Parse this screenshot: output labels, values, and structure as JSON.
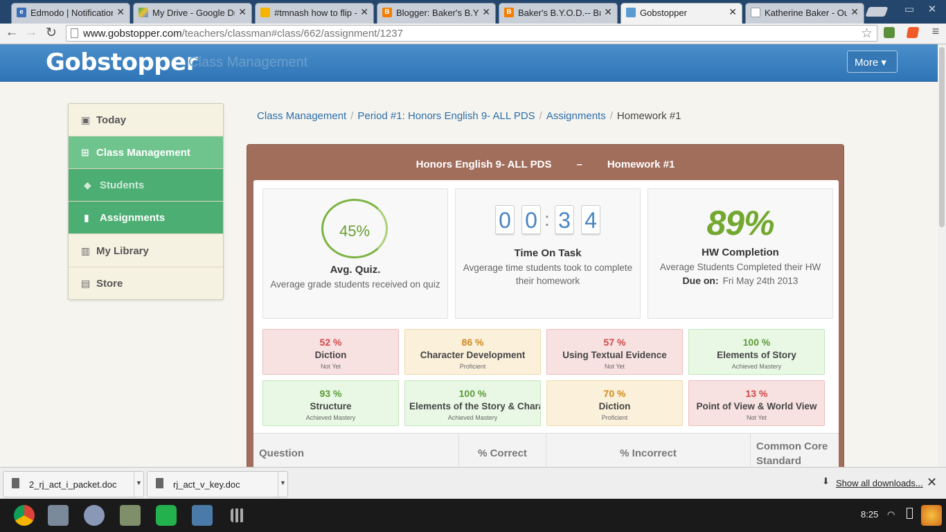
{
  "browser": {
    "tabs": [
      {
        "title": "Edmodo | Notifications",
        "icon": "edmodo-icon",
        "color": "#3a6fb8"
      },
      {
        "title": "My Drive - Google Drive",
        "icon": "google-drive-icon",
        "color": "#f1c232"
      },
      {
        "title": "#tmnash how to flip -",
        "icon": "document-icon",
        "color": "#f4b400"
      },
      {
        "title": "Blogger: Baker's B.Y.O.D.",
        "icon": "blogger-icon",
        "color": "#f57d00"
      },
      {
        "title": "Baker's B.Y.O.D.-- Bring",
        "icon": "blogger-icon",
        "color": "#f57d00"
      },
      {
        "title": "Gobstopper",
        "icon": "gobstopper-icon",
        "color": "#5a9bd4"
      },
      {
        "title": "Katherine Baker - Out",
        "icon": "page-icon",
        "color": "#dddddd"
      }
    ],
    "url_host": "www.gobstopper.com",
    "url_path": "/teachers/classman#class/662/assignment/1237"
  },
  "header": {
    "logo": "Gobstopper",
    "subtitle": "Class Management",
    "more_label": "More ▾"
  },
  "sidebar": {
    "items": [
      {
        "label": "Today",
        "icon": "calendar-icon",
        "glyph": "▣"
      },
      {
        "label": "Class Management",
        "icon": "classroom-icon",
        "glyph": "⊞"
      },
      {
        "label": "Students",
        "icon": "graduation-cap-icon",
        "glyph": "◆"
      },
      {
        "label": "Assignments",
        "icon": "clipboard-icon",
        "glyph": "▮"
      },
      {
        "label": "My Library",
        "icon": "book-icon",
        "glyph": "▥"
      },
      {
        "label": "Store",
        "icon": "store-icon",
        "glyph": "▤"
      }
    ]
  },
  "breadcrumb": {
    "items": [
      "Class Management",
      "Period #1: Honors English 9- ALL PDS",
      "Assignments"
    ],
    "current": "Homework #1"
  },
  "panel": {
    "class_name": "Honors English 9- ALL PDS",
    "dash": "–",
    "assignment": "Homework #1"
  },
  "stats": {
    "quiz": {
      "value": "45%",
      "fraction": 0.45,
      "title": "Avg. Quiz.",
      "desc": "Average grade students received on quiz"
    },
    "time": {
      "digits": [
        "0",
        "0",
        "3",
        "4"
      ],
      "title": "Time On Task",
      "desc": "Avgerage time students took to complete their homework"
    },
    "hw": {
      "value": "89%",
      "title": "HW Completion",
      "desc": "Average Students Completed their HW",
      "due_label": "Due on:",
      "due_value": "Fri May 24th 2013"
    }
  },
  "skills": [
    {
      "pct": "52 %",
      "name": "Diction",
      "level": "Not Yet",
      "status": "red"
    },
    {
      "pct": "86 %",
      "name": "Character Development",
      "level": "Proficient",
      "status": "org"
    },
    {
      "pct": "57 %",
      "name": "Using Textual Evidence",
      "level": "Not Yet",
      "status": "red"
    },
    {
      "pct": "100 %",
      "name": "Elements of Story",
      "level": "Achieved Mastery",
      "status": "grn"
    },
    {
      "pct": "93 %",
      "name": "Structure",
      "level": "Achieved Mastery",
      "status": "grn"
    },
    {
      "pct": "100 %",
      "name": "Elements of the Story & Character",
      "level": "Achieved Mastery",
      "status": "grn"
    },
    {
      "pct": "70 %",
      "name": "Diction",
      "level": "Proficient",
      "status": "org"
    },
    {
      "pct": "13 %",
      "name": "Point of View & World View",
      "level": "Not Yet",
      "status": "red"
    }
  ],
  "table": {
    "headers": [
      "Question",
      "% Correct",
      "% Incorrect",
      "Common Core Standard"
    ]
  },
  "downloads": {
    "files": [
      "2_rj_act_i_packet.doc",
      "rj_act_v_key.doc"
    ],
    "show_all": "Show all downloads..."
  },
  "taskbar": {
    "clock": "8:25"
  },
  "colors": {
    "header_blue": "#3a7fbf",
    "sidebar_active": "#4cae72",
    "panel_brown": "#a26e5c",
    "accent_green": "#73a830"
  }
}
